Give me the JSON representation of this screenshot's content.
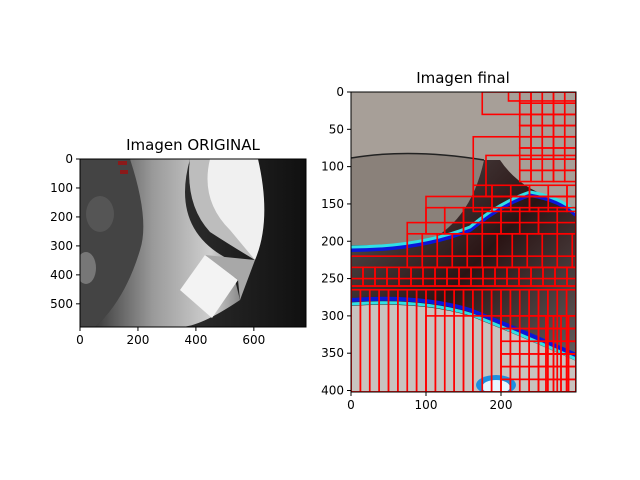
{
  "chart_data": [
    {
      "type": "image",
      "title": "Imagen ORIGINAL",
      "xlim": [
        0,
        780
      ],
      "ylim": [
        580,
        0
      ],
      "xticks": [
        0,
        200,
        400,
        600
      ],
      "yticks": [
        0,
        100,
        200,
        300,
        400,
        500
      ],
      "xlabel": "",
      "ylabel": "",
      "grid": false
    },
    {
      "type": "image",
      "title": "Imagen final",
      "xlim": [
        0,
        300
      ],
      "ylim": [
        402,
        0
      ],
      "xticks": [
        0,
        100,
        200
      ],
      "yticks": [
        0,
        50,
        100,
        150,
        200,
        250,
        300,
        350,
        400
      ],
      "xlabel": "",
      "ylabel": "",
      "grid": false,
      "overlay_color": "#ff0000",
      "overlay": "red rectangular grid of blocks drawn along edges of the segmented image"
    }
  ]
}
